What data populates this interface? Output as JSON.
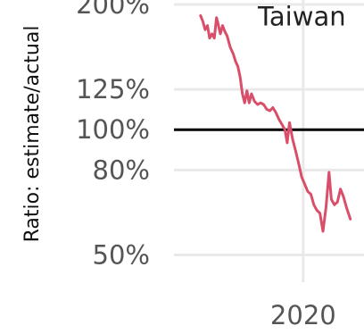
{
  "chart_data": {
    "type": "line",
    "title": "",
    "xlabel": "",
    "ylabel": "Ratio: estimate/actual",
    "scale": {
      "y": "log"
    },
    "xlim": [
      2018.3,
      2020.8
    ],
    "ylim": [
      0.43,
      2.05
    ],
    "x_ticks": [
      {
        "value": 2020,
        "label": "2020"
      }
    ],
    "y_ticks": [
      {
        "value": 2.0,
        "label": "200%"
      },
      {
        "value": 1.25,
        "label": "125%"
      },
      {
        "value": 1.0,
        "label": "100%"
      },
      {
        "value": 0.8,
        "label": "80%"
      },
      {
        "value": 0.5,
        "label": "50%"
      }
    ],
    "reference_line": {
      "value": 1.0,
      "color": "#000000"
    },
    "grid": true,
    "series": [
      {
        "name": "Taiwan",
        "color": "#d94f6a",
        "points": [
          [
            2018.65,
            1.88
          ],
          [
            2018.68,
            1.82
          ],
          [
            2018.71,
            1.74
          ],
          [
            2018.74,
            1.78
          ],
          [
            2018.77,
            1.66
          ],
          [
            2018.8,
            1.7
          ],
          [
            2018.83,
            1.66
          ],
          [
            2018.86,
            1.86
          ],
          [
            2018.88,
            1.8
          ],
          [
            2018.91,
            1.7
          ],
          [
            2018.94,
            1.78
          ],
          [
            2018.97,
            1.72
          ],
          [
            2019.0,
            1.68
          ],
          [
            2019.04,
            1.58
          ],
          [
            2019.08,
            1.52
          ],
          [
            2019.11,
            1.46
          ],
          [
            2019.14,
            1.42
          ],
          [
            2019.17,
            1.34
          ],
          [
            2019.2,
            1.22
          ],
          [
            2019.23,
            1.16
          ],
          [
            2019.26,
            1.24
          ],
          [
            2019.29,
            1.16
          ],
          [
            2019.32,
            1.22
          ],
          [
            2019.36,
            1.17
          ],
          [
            2019.4,
            1.15
          ],
          [
            2019.44,
            1.16
          ],
          [
            2019.48,
            1.15
          ],
          [
            2019.52,
            1.12
          ],
          [
            2019.56,
            1.11
          ],
          [
            2019.6,
            1.13
          ],
          [
            2019.64,
            1.1
          ],
          [
            2019.68,
            1.06
          ],
          [
            2019.72,
            1.03
          ],
          [
            2019.76,
            1.0
          ],
          [
            2019.79,
            0.93
          ],
          [
            2019.82,
            1.04
          ],
          [
            2019.86,
            0.95
          ],
          [
            2019.9,
            0.89
          ],
          [
            2019.94,
            0.83
          ],
          [
            2019.98,
            0.77
          ],
          [
            2020.02,
            0.74
          ],
          [
            2020.06,
            0.71
          ],
          [
            2020.1,
            0.7
          ],
          [
            2020.14,
            0.66
          ],
          [
            2020.18,
            0.64
          ],
          [
            2020.22,
            0.63
          ],
          [
            2020.26,
            0.57
          ],
          [
            2020.3,
            0.65
          ],
          [
            2020.34,
            0.79
          ],
          [
            2020.37,
            0.68
          ],
          [
            2020.41,
            0.66
          ],
          [
            2020.45,
            0.67
          ],
          [
            2020.49,
            0.72
          ],
          [
            2020.53,
            0.69
          ],
          [
            2020.57,
            0.65
          ],
          [
            2020.62,
            0.61
          ]
        ]
      }
    ]
  }
}
